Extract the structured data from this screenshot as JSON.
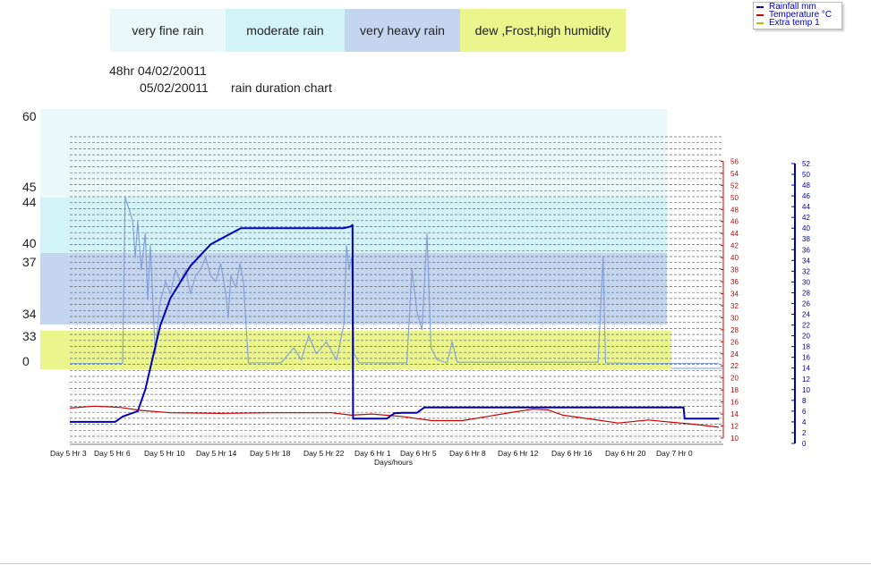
{
  "legend_bands": [
    {
      "label": "very fine rain",
      "color": "#eaf8f9"
    },
    {
      "label": "moderate rain",
      "color": "#d2f3f8"
    },
    {
      "label": "very heavy rain",
      "color": "#c4d6ef"
    },
    {
      "label": "dew ,Frost,high humidity",
      "color": "#eaf68c"
    }
  ],
  "header": {
    "line1": "48hr 04/02/20011",
    "line2": "05/02/20011",
    "line2_caption": "rain duration chart"
  },
  "series_legend": [
    {
      "name": "Rainfall mm",
      "color": "#0000bb"
    },
    {
      "name": "Temperature °C",
      "color": "#cc0000"
    },
    {
      "name": "Extra temp 1",
      "color": "#bbbb00"
    }
  ],
  "chart_data": {
    "type": "line",
    "xlabel": "Days/hours",
    "x_tick_labels": [
      "Day 5 Hr 3",
      "Day 5 Hr 6",
      "Day 5 Hr 10",
      "Day 5 Hr 14",
      "Day 5 Hr 18",
      "Day 5 Hr 22",
      "Day 6 Hr 1",
      "Day 6 Hr 5",
      "Day 6 Hr 8",
      "Day 6 Hr 12",
      "Day 6 Hr 16",
      "Day 6 Hr 20",
      "Day 7 Hr 0"
    ],
    "left_band_labels": [
      "60",
      "45",
      "44",
      "40",
      "37",
      "34",
      "33",
      "0"
    ],
    "temperature_axis": {
      "min": 10,
      "max": 56,
      "step": 2,
      "color": "#cc0000"
    },
    "rainfall_axis": {
      "min": 0,
      "max": 52,
      "step": 2,
      "color": "#0000bb"
    },
    "series": [
      {
        "name": "Rainfall mm",
        "axis": "rainfall",
        "points": [
          [
            0,
            4
          ],
          [
            0.9,
            4
          ],
          [
            1.05,
            5
          ],
          [
            1.35,
            6
          ],
          [
            1.5,
            10
          ],
          [
            1.65,
            16
          ],
          [
            1.8,
            22
          ],
          [
            2.0,
            27
          ],
          [
            2.2,
            30
          ],
          [
            2.4,
            33
          ],
          [
            2.6,
            35
          ],
          [
            2.8,
            37
          ],
          [
            3.0,
            38
          ],
          [
            3.2,
            39
          ],
          [
            3.4,
            40
          ],
          [
            3.6,
            40
          ],
          [
            4.0,
            40
          ],
          [
            4.4,
            40
          ],
          [
            4.8,
            40
          ],
          [
            5.1,
            40
          ],
          [
            5.3,
            40
          ],
          [
            5.45,
            40
          ],
          [
            5.58,
            40.3
          ],
          [
            5.62,
            40.6
          ],
          [
            5.63,
            4.6
          ],
          [
            6.0,
            4.6
          ],
          [
            6.25,
            4.6
          ],
          [
            6.3,
            4.6
          ],
          [
            6.45,
            5.6
          ],
          [
            6.6,
            5.7
          ],
          [
            6.9,
            5.7
          ],
          [
            7.05,
            6.7
          ],
          [
            7.3,
            6.7
          ],
          [
            10.0,
            6.7
          ],
          [
            11.9,
            6.7
          ],
          [
            12.2,
            6.7
          ],
          [
            12.22,
            4.6
          ],
          [
            12.9,
            4.6
          ]
        ]
      },
      {
        "name": "Temperature °C",
        "axis": "temperature",
        "points": [
          [
            0,
            15
          ],
          [
            0.5,
            15.3
          ],
          [
            1.0,
            15.1
          ],
          [
            1.4,
            14.6
          ],
          [
            2.0,
            14.2
          ],
          [
            3.0,
            14.1
          ],
          [
            4.0,
            14.2
          ],
          [
            5.2,
            14.2
          ],
          [
            5.6,
            13.8
          ],
          [
            6.0,
            14
          ],
          [
            6.6,
            13.6
          ],
          [
            7.2,
            12.9
          ],
          [
            7.8,
            12.9
          ],
          [
            8.3,
            13.6
          ],
          [
            8.8,
            14.3
          ],
          [
            9.2,
            14.8
          ],
          [
            9.5,
            14.7
          ],
          [
            9.8,
            13.8
          ],
          [
            10.4,
            13.1
          ],
          [
            10.9,
            12.5
          ],
          [
            11.5,
            13.0
          ],
          [
            12.0,
            12.6
          ],
          [
            12.4,
            12.3
          ],
          [
            12.9,
            11.8
          ]
        ]
      },
      {
        "name": "Extra temp 1",
        "axis": "temperature",
        "points": [
          [
            0,
            22.4
          ],
          [
            1.05,
            22.4
          ],
          [
            1.1,
            50
          ],
          [
            1.18,
            48
          ],
          [
            1.25,
            46
          ],
          [
            1.3,
            40
          ],
          [
            1.35,
            46
          ],
          [
            1.42,
            38
          ],
          [
            1.5,
            44
          ],
          [
            1.55,
            33
          ],
          [
            1.6,
            42
          ],
          [
            1.7,
            24
          ],
          [
            1.78,
            32
          ],
          [
            1.9,
            36
          ],
          [
            2.0,
            34
          ],
          [
            2.1,
            38
          ],
          [
            2.2,
            36
          ],
          [
            2.3,
            38
          ],
          [
            2.4,
            34
          ],
          [
            2.5,
            37
          ],
          [
            2.6,
            38
          ],
          [
            2.7,
            40
          ],
          [
            2.8,
            37
          ],
          [
            2.9,
            36
          ],
          [
            3.0,
            39
          ],
          [
            3.1,
            34
          ],
          [
            3.15,
            30
          ],
          [
            3.2,
            37
          ],
          [
            3.3,
            35
          ],
          [
            3.38,
            39
          ],
          [
            3.45,
            36
          ],
          [
            3.55,
            22.5
          ],
          [
            4.2,
            22.5
          ],
          [
            4.45,
            25
          ],
          [
            4.6,
            23
          ],
          [
            4.75,
            27
          ],
          [
            4.9,
            24
          ],
          [
            5.1,
            26
          ],
          [
            5.3,
            23
          ],
          [
            5.45,
            29
          ],
          [
            5.5,
            42
          ],
          [
            5.55,
            38
          ],
          [
            5.6,
            40
          ],
          [
            5.65,
            24
          ],
          [
            5.75,
            22.5
          ],
          [
            6.7,
            22.5
          ],
          [
            6.8,
            38
          ],
          [
            6.9,
            31
          ],
          [
            7.0,
            28
          ],
          [
            7.1,
            44
          ],
          [
            7.18,
            25
          ],
          [
            7.3,
            23
          ],
          [
            7.5,
            22.5
          ],
          [
            7.6,
            26
          ],
          [
            7.7,
            22.6
          ],
          [
            8.5,
            22.6
          ],
          [
            9.7,
            22.6
          ],
          [
            10.2,
            22.6
          ],
          [
            10.5,
            22.6
          ],
          [
            10.6,
            40
          ],
          [
            10.65,
            22.5
          ],
          [
            11.3,
            22.4
          ],
          [
            12.9,
            22.4
          ]
        ]
      }
    ],
    "grid": true
  }
}
